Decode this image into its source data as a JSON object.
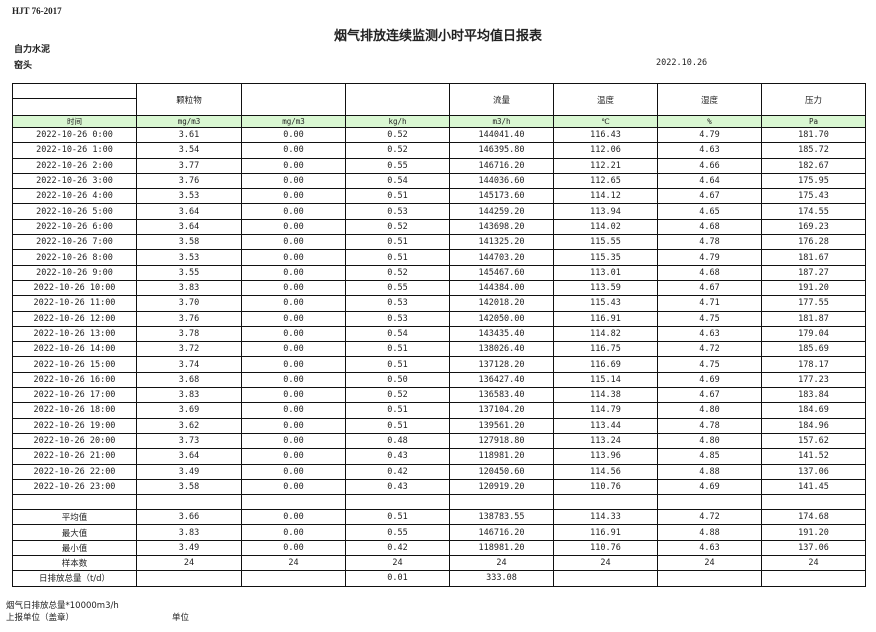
{
  "header": {
    "standard": "HJT  76-2017",
    "title": "烟气排放连续监测小时平均值日报表",
    "company": "自力水泥",
    "unit": "窑头",
    "date": "2022.10.26"
  },
  "columns": [
    "",
    "颗粒物",
    "",
    "",
    "流量",
    "温度",
    "湿度",
    "压力"
  ],
  "units": [
    "时间",
    "mg/m3",
    "mg/m3",
    "kg/h",
    "m3/h",
    "℃",
    "%",
    "Pa"
  ],
  "rows": [
    [
      "2022-10-26  0:00",
      "3.61",
      "0.00",
      "0.52",
      "144041.40",
      "116.43",
      "4.79",
      "181.70"
    ],
    [
      "2022-10-26  1:00",
      "3.54",
      "0.00",
      "0.52",
      "146395.80",
      "112.06",
      "4.63",
      "185.72"
    ],
    [
      "2022-10-26  2:00",
      "3.77",
      "0.00",
      "0.55",
      "146716.20",
      "112.21",
      "4.66",
      "182.67"
    ],
    [
      "2022-10-26  3:00",
      "3.76",
      "0.00",
      "0.54",
      "144036.60",
      "112.65",
      "4.64",
      "175.95"
    ],
    [
      "2022-10-26  4:00",
      "3.53",
      "0.00",
      "0.51",
      "145173.60",
      "114.12",
      "4.67",
      "175.43"
    ],
    [
      "2022-10-26  5:00",
      "3.64",
      "0.00",
      "0.53",
      "144259.20",
      "113.94",
      "4.65",
      "174.55"
    ],
    [
      "2022-10-26  6:00",
      "3.64",
      "0.00",
      "0.52",
      "143698.20",
      "114.02",
      "4.68",
      "169.23"
    ],
    [
      "2022-10-26  7:00",
      "3.58",
      "0.00",
      "0.51",
      "141325.20",
      "115.55",
      "4.78",
      "176.28"
    ],
    [
      "2022-10-26  8:00",
      "3.53",
      "0.00",
      "0.51",
      "144703.20",
      "115.35",
      "4.79",
      "181.67"
    ],
    [
      "2022-10-26  9:00",
      "3.55",
      "0.00",
      "0.52",
      "145467.60",
      "113.01",
      "4.68",
      "187.27"
    ],
    [
      "2022-10-26 10:00",
      "3.83",
      "0.00",
      "0.55",
      "144384.00",
      "113.59",
      "4.67",
      "191.20"
    ],
    [
      "2022-10-26 11:00",
      "3.70",
      "0.00",
      "0.53",
      "142018.20",
      "115.43",
      "4.71",
      "177.55"
    ],
    [
      "2022-10-26 12:00",
      "3.76",
      "0.00",
      "0.53",
      "142050.00",
      "116.91",
      "4.75",
      "181.87"
    ],
    [
      "2022-10-26 13:00",
      "3.78",
      "0.00",
      "0.54",
      "143435.40",
      "114.82",
      "4.63",
      "179.04"
    ],
    [
      "2022-10-26 14:00",
      "3.72",
      "0.00",
      "0.51",
      "138026.40",
      "116.75",
      "4.72",
      "185.69"
    ],
    [
      "2022-10-26 15:00",
      "3.74",
      "0.00",
      "0.51",
      "137128.20",
      "116.69",
      "4.75",
      "178.17"
    ],
    [
      "2022-10-26 16:00",
      "3.68",
      "0.00",
      "0.50",
      "136427.40",
      "115.14",
      "4.69",
      "177.23"
    ],
    [
      "2022-10-26 17:00",
      "3.83",
      "0.00",
      "0.52",
      "136583.40",
      "114.38",
      "4.67",
      "183.84"
    ],
    [
      "2022-10-26 18:00",
      "3.69",
      "0.00",
      "0.51",
      "137104.20",
      "114.79",
      "4.80",
      "184.69"
    ],
    [
      "2022-10-26 19:00",
      "3.62",
      "0.00",
      "0.51",
      "139561.20",
      "113.44",
      "4.78",
      "184.96"
    ],
    [
      "2022-10-26 20:00",
      "3.73",
      "0.00",
      "0.48",
      "127918.80",
      "113.24",
      "4.80",
      "157.62"
    ],
    [
      "2022-10-26 21:00",
      "3.64",
      "0.00",
      "0.43",
      "118981.20",
      "113.96",
      "4.85",
      "141.52"
    ],
    [
      "2022-10-26 22:00",
      "3.49",
      "0.00",
      "0.42",
      "120450.60",
      "114.56",
      "4.88",
      "137.06"
    ],
    [
      "2022-10-26 23:00",
      "3.58",
      "0.00",
      "0.43",
      "120919.20",
      "110.76",
      "4.69",
      "141.45"
    ]
  ],
  "summary": [
    [
      "平均值",
      "3.66",
      "0.00",
      "0.51",
      "138783.55",
      "114.33",
      "4.72",
      "174.68"
    ],
    [
      "最大值",
      "3.83",
      "0.00",
      "0.55",
      "146716.20",
      "116.91",
      "4.88",
      "191.20"
    ],
    [
      "最小值",
      "3.49",
      "0.00",
      "0.42",
      "118981.20",
      "110.76",
      "4.63",
      "137.06"
    ],
    [
      "样本数",
      "24",
      "24",
      "24",
      "24",
      "24",
      "24",
      "24"
    ],
    [
      "日排放总量（t/d）",
      "",
      "",
      "0.01",
      "333.08",
      "",
      "",
      ""
    ]
  ],
  "footer": {
    "note": "烟气日排放总量*10000m3/h",
    "reporter": "上报单位（盖章）",
    "unit_label": "单位"
  }
}
